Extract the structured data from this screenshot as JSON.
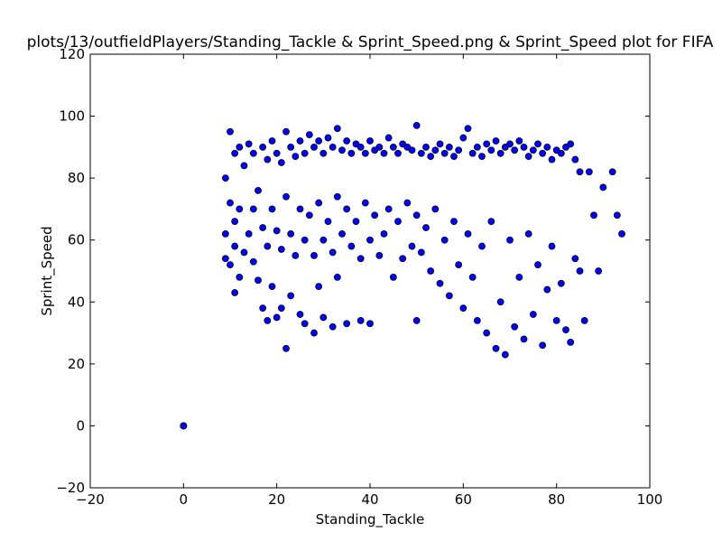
{
  "chart_data": {
    "type": "scatter",
    "title": "plots/13/outfieldPlayers/Standing_Tackle & Sprint_Speed.png & Sprint_Speed plot for FIFA",
    "xlabel": "Standing_Tackle",
    "ylabel": "Sprint_Speed",
    "xlim": [
      -20,
      100
    ],
    "ylim": [
      -20,
      120
    ],
    "xticks": [
      -20,
      0,
      20,
      40,
      60,
      80,
      100
    ],
    "yticks": [
      -20,
      0,
      20,
      40,
      60,
      80,
      100,
      120
    ],
    "grid": false,
    "marker_color": "#0000ff",
    "marker_edge_color": "#000000",
    "series": [
      {
        "x": [
          0,
          0,
          0,
          9,
          9,
          9,
          10,
          10,
          10,
          11,
          11,
          11,
          11,
          12,
          12,
          12,
          13,
          13,
          14,
          14,
          15,
          15,
          15,
          16,
          16,
          17,
          17,
          17,
          18,
          18,
          18,
          19,
          19,
          19,
          20,
          20,
          20,
          21,
          21,
          21,
          22,
          22,
          22,
          23,
          23,
          23,
          24,
          24,
          25,
          25,
          25,
          26,
          26,
          26,
          27,
          27,
          28,
          28,
          28,
          29,
          29,
          29,
          30,
          30,
          30,
          31,
          31,
          32,
          32,
          32,
          33,
          33,
          33,
          34,
          34,
          35,
          35,
          35,
          36,
          36,
          37,
          37,
          38,
          38,
          38,
          39,
          39,
          40,
          40,
          40,
          41,
          41,
          42,
          42,
          43,
          43,
          44,
          44,
          45,
          45,
          46,
          46,
          47,
          47,
          48,
          48,
          49,
          49,
          50,
          50,
          50,
          51,
          51,
          52,
          52,
          53,
          53,
          54,
          54,
          55,
          55,
          56,
          56,
          57,
          57,
          58,
          58,
          59,
          59,
          60,
          60,
          61,
          61,
          62,
          62,
          63,
          63,
          64,
          64,
          65,
          65,
          66,
          66,
          67,
          67,
          68,
          68,
          69,
          69,
          70,
          70,
          71,
          71,
          72,
          72,
          73,
          73,
          74,
          74,
          75,
          75,
          76,
          76,
          77,
          77,
          78,
          78,
          79,
          79,
          80,
          80,
          81,
          81,
          82,
          82,
          83,
          83,
          84,
          84,
          85,
          85,
          86,
          87,
          88,
          89,
          90,
          92,
          93,
          94
        ],
        "y": [
          0,
          0,
          0,
          80,
          62,
          54,
          95,
          72,
          52,
          88,
          66,
          58,
          43,
          90,
          70,
          48,
          84,
          56,
          91,
          62,
          88,
          70,
          53,
          76,
          47,
          90,
          64,
          38,
          86,
          58,
          34,
          92,
          70,
          45,
          88,
          63,
          35,
          85,
          57,
          38,
          95,
          74,
          25,
          90,
          62,
          42,
          87,
          55,
          92,
          70,
          36,
          88,
          60,
          33,
          94,
          68,
          90,
          55,
          30,
          92,
          72,
          45,
          88,
          60,
          35,
          93,
          66,
          90,
          56,
          32,
          96,
          74,
          48,
          89,
          62,
          92,
          70,
          33,
          88,
          58,
          91,
          66,
          90,
          54,
          34,
          88,
          72,
          92,
          60,
          33,
          89,
          68,
          90,
          55,
          88,
          62,
          93,
          70,
          90,
          48,
          88,
          66,
          91,
          54,
          90,
          72,
          89,
          58,
          97,
          68,
          34,
          88,
          56,
          90,
          64,
          87,
          50,
          89,
          70,
          91,
          46,
          88,
          60,
          90,
          42,
          87,
          66,
          89,
          52,
          93,
          38,
          96,
          62,
          88,
          48,
          90,
          34,
          87,
          58,
          91,
          30,
          89,
          66,
          92,
          25,
          88,
          40,
          90,
          23,
          91,
          60,
          89,
          32,
          92,
          48,
          90,
          28,
          87,
          62,
          89,
          36,
          91,
          52,
          88,
          26,
          90,
          44,
          86,
          58,
          89,
          34,
          88,
          46,
          90,
          31,
          91,
          27,
          86,
          54,
          82,
          50,
          34,
          82,
          68,
          50,
          77,
          82,
          68,
          62
        ]
      }
    ]
  }
}
